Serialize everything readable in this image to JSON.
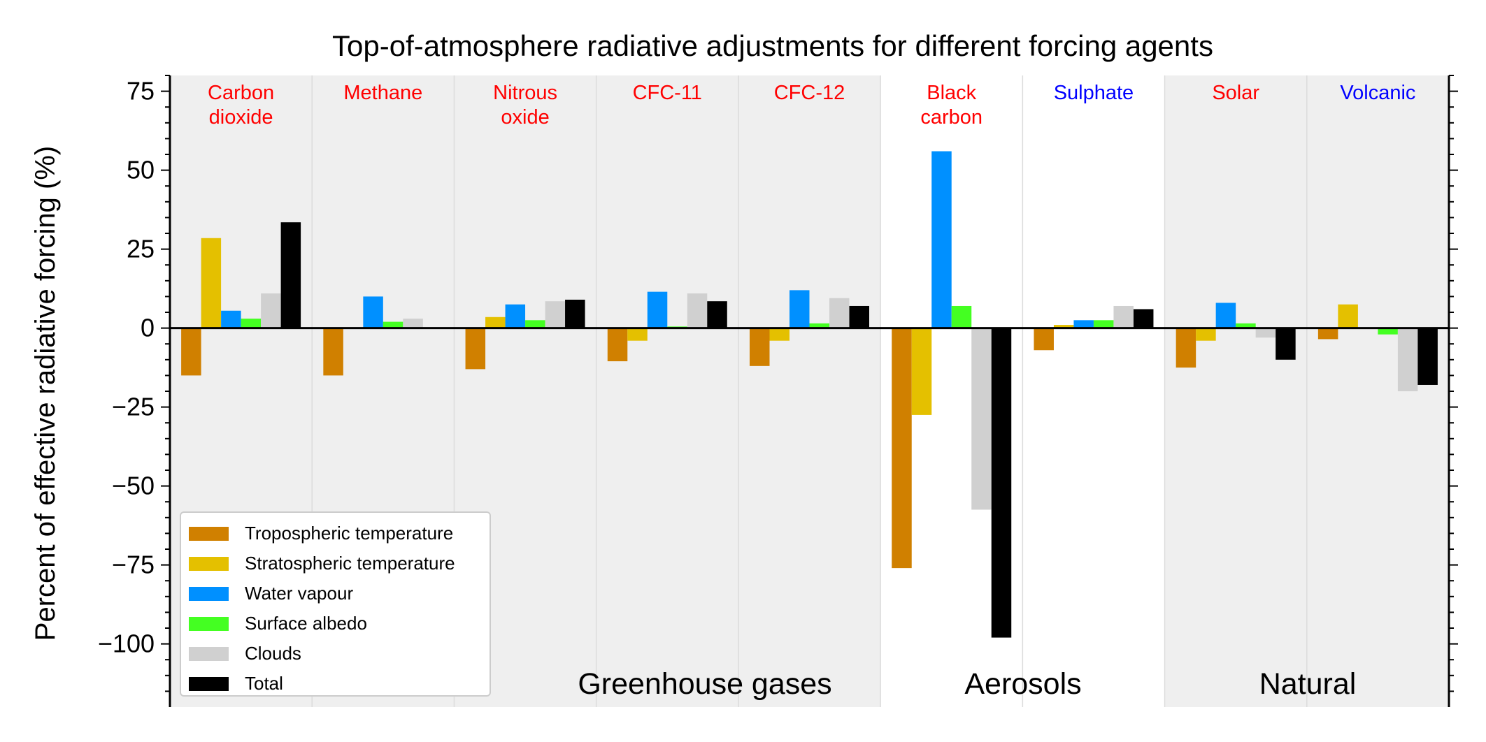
{
  "chart_data": {
    "type": "bar",
    "title": "Top-of-atmosphere radiative adjustments for different forcing agents",
    "ylabel": "Percent of effective radiative forcing (%)",
    "xlabel": "",
    "ylim": [
      -120,
      80
    ],
    "yticks": [
      75,
      50,
      25,
      0,
      -25,
      -50,
      -75,
      -100
    ],
    "ytick_labels": [
      "75",
      "50",
      "25",
      "0",
      "−25",
      "−50",
      "−75",
      "−100"
    ],
    "grid": false,
    "legend_position": "lower-left",
    "categories": [
      "Carbon dioxide",
      "Methane",
      "Nitrous oxide",
      "CFC-11",
      "CFC-12",
      "Black carbon",
      "Sulphate",
      "Solar",
      "Volcanic"
    ],
    "category_labels": [
      {
        "lines": [
          "Carbon",
          "dioxide"
        ],
        "color": "#ff0000"
      },
      {
        "lines": [
          "Methane"
        ],
        "color": "#ff0000"
      },
      {
        "lines": [
          "Nitrous",
          "oxide"
        ],
        "color": "#ff0000"
      },
      {
        "lines": [
          "CFC-11"
        ],
        "color": "#ff0000"
      },
      {
        "lines": [
          "CFC-12"
        ],
        "color": "#ff0000"
      },
      {
        "lines": [
          "Black",
          "carbon"
        ],
        "color": "#ff0000"
      },
      {
        "lines": [
          "Sulphate"
        ],
        "color": "#0000ff"
      },
      {
        "lines": [
          "Solar"
        ],
        "color": "#ff0000"
      },
      {
        "lines": [
          "Volcanic"
        ],
        "color": "#0000ff"
      }
    ],
    "groups": [
      {
        "name": "Greenhouse gases",
        "start": 0,
        "end": 4,
        "shaded": true
      },
      {
        "name": "Aerosols",
        "start": 5,
        "end": 6,
        "shaded": false
      },
      {
        "name": "Natural",
        "start": 7,
        "end": 8,
        "shaded": true
      }
    ],
    "series": [
      {
        "name": "Tropospheric temperature",
        "color": "#d08000",
        "values": [
          -15,
          -15,
          -13,
          -10.5,
          -12,
          -76,
          -7,
          -12.5,
          -3.5
        ]
      },
      {
        "name": "Stratospheric temperature",
        "color": "#e4c000",
        "values": [
          28.5,
          0,
          3.5,
          -4,
          -4,
          -27.5,
          1,
          -4,
          7.5
        ]
      },
      {
        "name": "Water vapour",
        "color": "#0090ff",
        "values": [
          5.5,
          10,
          7.5,
          11.5,
          12,
          56,
          2.5,
          8,
          0
        ]
      },
      {
        "name": "Surface albedo",
        "color": "#44ff22",
        "values": [
          3,
          2,
          2.5,
          0.5,
          1.5,
          7,
          2.5,
          1.5,
          -2
        ]
      },
      {
        "name": "Clouds",
        "color": "#d0d0d0",
        "values": [
          11,
          3,
          8.5,
          11,
          9.5,
          -57.5,
          7,
          -3,
          -20
        ]
      },
      {
        "name": "Total",
        "color": "#000000",
        "values": [
          33.5,
          0,
          9,
          8.5,
          7,
          -98,
          6,
          -10,
          -18
        ]
      }
    ]
  }
}
